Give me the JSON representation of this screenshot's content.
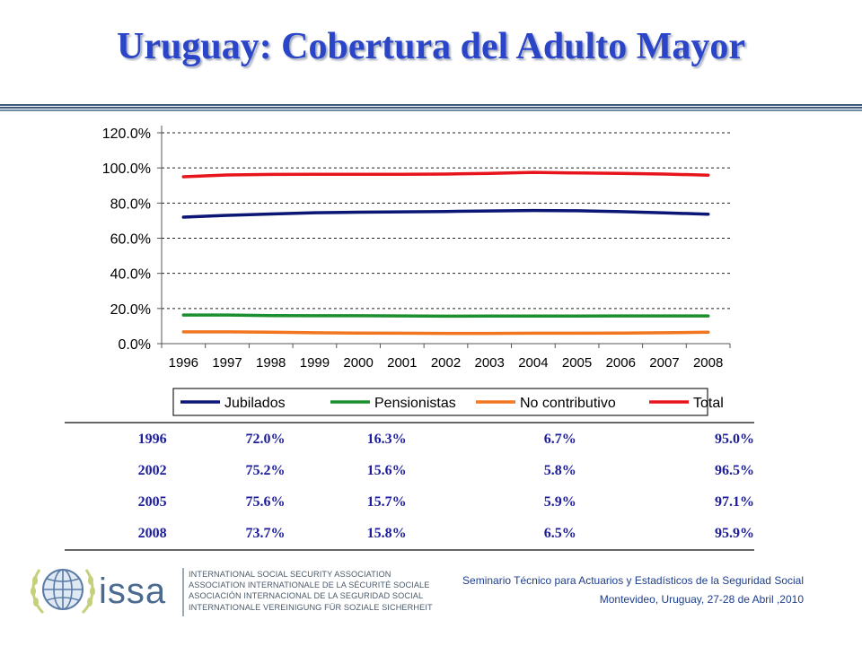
{
  "page": {
    "title": "Uruguay: Cobertura del Adulto Mayor"
  },
  "chart_data": {
    "type": "line",
    "x": [
      "1996",
      "1997",
      "1998",
      "1999",
      "2000",
      "2001",
      "2002",
      "2003",
      "2004",
      "2005",
      "2006",
      "2007",
      "2008"
    ],
    "y_ticks": [
      "0.0%",
      "20.0%",
      "40.0%",
      "60.0%",
      "80.0%",
      "100.0%",
      "120.0%"
    ],
    "ylim": [
      0,
      120
    ],
    "grid": true,
    "legend_position": "bottom",
    "series": [
      {
        "name": "Jubilados",
        "color": "#0c1675",
        "values": [
          72.0,
          73.0,
          73.8,
          74.5,
          74.8,
          75.0,
          75.2,
          75.5,
          75.8,
          75.6,
          75.1,
          74.4,
          73.7
        ]
      },
      {
        "name": "Pensionistas",
        "color": "#1b8f2e",
        "values": [
          16.3,
          16.3,
          16.0,
          15.9,
          15.9,
          15.8,
          15.6,
          15.7,
          15.7,
          15.7,
          15.8,
          15.8,
          15.8
        ]
      },
      {
        "name": "No contributivo",
        "color": "#f07621",
        "values": [
          6.7,
          6.7,
          6.5,
          6.2,
          6.0,
          5.9,
          5.8,
          5.8,
          5.9,
          5.9,
          6.0,
          6.2,
          6.5
        ]
      },
      {
        "name": "Total",
        "color": "#e8141b",
        "values": [
          95.0,
          96.0,
          96.3,
          96.4,
          96.4,
          96.4,
          96.5,
          96.9,
          97.5,
          97.1,
          96.9,
          96.5,
          95.9
        ]
      }
    ]
  },
  "table": {
    "rows": [
      [
        "1996",
        "72.0%",
        "16.3%",
        "6.7%",
        "95.0%"
      ],
      [
        "2002",
        "75.2%",
        "15.6%",
        "5.8%",
        "96.5%"
      ],
      [
        "2005",
        "75.6%",
        "15.7%",
        "5.9%",
        "97.1%"
      ],
      [
        "2008",
        "73.7%",
        "15.8%",
        "6.5%",
        "95.9%"
      ]
    ]
  },
  "footer": {
    "logo_text": "issa",
    "org_names": [
      "INTERNATIONAL SOCIAL SECURITY ASSOCIATION",
      "ASSOCIATION INTERNATIONALE DE LA SÉCURITÉ SOCIALE",
      "ASOCIACIÓN INTERNACIONAL DE LA SEGURIDAD SOCIAL",
      "INTERNATIONALE VEREINIGUNG FÜR SOZIALE SICHERHEIT"
    ],
    "seminar_line1": "Seminario Técnico para Actuarios y Estadísticos de la Seguridad Social",
    "seminar_line2": "Montevideo, Uruguay, 27-28 de Abril ,2010"
  }
}
